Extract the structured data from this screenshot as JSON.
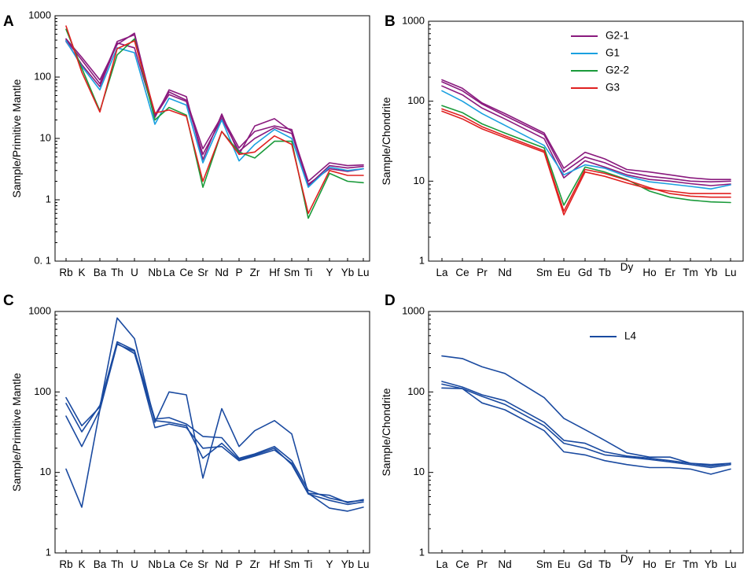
{
  "chart_data": [
    {
      "panel": "A",
      "type": "line",
      "title": "",
      "xlabel": "",
      "ylabel": "Sample/Primitive Mantle",
      "yscale": "log",
      "ylim": [
        0.1,
        1000
      ],
      "yticks": [
        {
          "value": 0.1,
          "label": "0. 1"
        },
        {
          "value": 1,
          "label": "1"
        },
        {
          "value": 10,
          "label": "10"
        },
        {
          "value": 100,
          "label": "100"
        },
        {
          "value": 1000,
          "label": "1000"
        }
      ],
      "categories": [
        "Rb",
        "K",
        "Ba",
        "Th",
        "U",
        "Nb",
        "La",
        "Ce",
        "Sr",
        "Nd",
        "P",
        "Zr",
        "Hf",
        "Sm",
        "Ti",
        "Y",
        "Yb",
        "Lu"
      ],
      "legend": [],
      "series": [
        {
          "name": "G2-1",
          "color": "#8a1a7e",
          "values": [
            420,
            210,
            90,
            340,
            520,
            22,
            62,
            48,
            4.5,
            25,
            5.5,
            16,
            21,
            13,
            2.0,
            4.0,
            3.6,
            3.7
          ]
        },
        {
          "name": "G2-1",
          "color": "#8a1a7e",
          "values": [
            400,
            190,
            78,
            380,
            490,
            24,
            57,
            42,
            6.8,
            23,
            7.0,
            13,
            16,
            14,
            1.7,
            3.6,
            3.3,
            3.5
          ]
        },
        {
          "name": "G2-1",
          "color": "#8a1a7e",
          "values": [
            380,
            160,
            70,
            360,
            300,
            23,
            52,
            40,
            5.5,
            21,
            6.2,
            10,
            15,
            12,
            1.8,
            3.2,
            2.9,
            3.2
          ]
        },
        {
          "name": "G1",
          "color": "#1aa0e0",
          "values": [
            390,
            150,
            62,
            300,
            250,
            17,
            45,
            35,
            4.0,
            20,
            4.3,
            8,
            14,
            10,
            1.6,
            3.4,
            3.0,
            3.2
          ]
        },
        {
          "name": "G2-2",
          "color": "#1a9a3a",
          "values": [
            600,
            140,
            28,
            230,
            420,
            20,
            32,
            24,
            1.6,
            13,
            6.0,
            4.8,
            9.0,
            9.0,
            0.5,
            2.7,
            2.0,
            1.9
          ]
        },
        {
          "name": "G3",
          "color": "#e02020",
          "values": [
            680,
            120,
            27,
            290,
            390,
            26,
            29,
            23,
            2.0,
            13,
            5.5,
            6.0,
            11.0,
            8.0,
            0.6,
            3.0,
            2.5,
            2.5
          ]
        }
      ]
    },
    {
      "panel": "B",
      "type": "line",
      "title": "",
      "xlabel": "",
      "ylabel": "Sample/Chondrite",
      "yscale": "log",
      "ylim": [
        1,
        1000
      ],
      "yticks": [
        {
          "value": 1,
          "label": "1"
        },
        {
          "value": 10,
          "label": "10"
        },
        {
          "value": 100,
          "label": "100"
        },
        {
          "value": 1000,
          "label": "1000"
        }
      ],
      "categories": [
        "La",
        "Ce",
        "Pr",
        "Nd",
        "Sm",
        "Eu",
        "Gd",
        "Tb",
        "Dy",
        "Ho",
        "Er",
        "Tm",
        "Yb",
        "Lu"
      ],
      "legend": [
        "G2-1",
        "G1",
        "G2-2",
        "G3"
      ],
      "legend_position": "top-right",
      "series": [
        {
          "name": "G2-1",
          "color": "#8a1a7e",
          "values": [
            185,
            145,
            95,
            70,
            40,
            14.5,
            23,
            19,
            14,
            13,
            12,
            11,
            10.5,
            10.5
          ]
        },
        {
          "name": "G2-1",
          "color": "#8a1a7e",
          "values": [
            175,
            135,
            92,
            66,
            38,
            13,
            20,
            17,
            13,
            11.5,
            10.8,
            10,
            9.8,
            10
          ]
        },
        {
          "name": "G2-1",
          "color": "#8a1a7e",
          "values": [
            155,
            120,
            82,
            60,
            34,
            11,
            18,
            15,
            12,
            10.5,
            10,
            9.3,
            8.8,
            9.2
          ]
        },
        {
          "name": "G1",
          "color": "#1aa0e0",
          "values": [
            135,
            100,
            70,
            50,
            28,
            12,
            16,
            14.5,
            11.5,
            9.8,
            9.2,
            8.6,
            8,
            9
          ]
        },
        {
          "name": "G2-2",
          "color": "#1a9a3a",
          "values": [
            88,
            72,
            52,
            40,
            26,
            5,
            15,
            13,
            10.5,
            7.5,
            6.3,
            5.8,
            5.5,
            5.4
          ]
        },
        {
          "name": "G3",
          "color": "#e02020",
          "values": [
            75,
            60,
            45,
            35,
            23,
            3.8,
            13,
            11.5,
            9.5,
            8,
            7.5,
            7,
            7,
            7
          ]
        },
        {
          "name": "G3",
          "color": "#e02020",
          "values": [
            80,
            65,
            48,
            37,
            24,
            4.2,
            14,
            12.5,
            10.3,
            8.3,
            7,
            6.5,
            6.3,
            6.3
          ]
        }
      ]
    },
    {
      "panel": "C",
      "type": "line",
      "title": "",
      "xlabel": "",
      "ylabel": "Sample/Primitive Mantle",
      "yscale": "log",
      "ylim": [
        1,
        1000
      ],
      "yticks": [
        {
          "value": 1,
          "label": "1"
        },
        {
          "value": 10,
          "label": "10"
        },
        {
          "value": 100,
          "label": "100"
        },
        {
          "value": 1000,
          "label": "1000"
        }
      ],
      "categories": [
        "Rb",
        "K",
        "Ba",
        "Th",
        "U",
        "Nb",
        "La",
        "Ce",
        "Sr",
        "Nd",
        "P",
        "Zr",
        "Hf",
        "Sm",
        "Ti",
        "Y",
        "Yb",
        "Lu"
      ],
      "legend": [],
      "series": [
        {
          "name": "L4",
          "color": "#1a4aa0",
          "values": [
            85,
            38,
            65,
            830,
            460,
            42,
            100,
            92,
            8.5,
            62,
            21,
            33,
            44,
            30,
            5.5,
            5.2,
            4.2,
            4.6
          ]
        },
        {
          "name": "L4",
          "color": "#1a4aa0",
          "values": [
            72,
            32,
            68,
            420,
            330,
            46,
            48,
            40,
            28,
            27,
            15,
            17,
            21,
            14,
            6.0,
            4.8,
            4.3,
            4.5
          ]
        },
        {
          "name": "L4",
          "color": "#1a4aa0",
          "values": [
            50,
            21,
            60,
            400,
            300,
            44,
            42,
            38,
            15,
            23,
            14.5,
            16.5,
            20,
            12.5,
            5.4,
            4.5,
            4.0,
            4.3
          ]
        },
        {
          "name": "L4",
          "color": "#1a4aa0",
          "values": [
            11,
            3.7,
            60,
            390,
            320,
            36,
            40,
            36,
            20,
            21,
            14,
            16,
            19,
            13,
            5.5,
            3.6,
            3.3,
            3.7
          ]
        }
      ]
    },
    {
      "panel": "D",
      "type": "line",
      "title": "",
      "xlabel": "",
      "ylabel": "Sample/Chondrite",
      "yscale": "log",
      "ylim": [
        1,
        1000
      ],
      "yticks": [
        {
          "value": 1,
          "label": "1"
        },
        {
          "value": 10,
          "label": "10"
        },
        {
          "value": 100,
          "label": "100"
        },
        {
          "value": 1000,
          "label": "1000"
        }
      ],
      "categories": [
        "La",
        "Ce",
        "Pr",
        "Nd",
        "Sm",
        "Eu",
        "Gd",
        "Tb",
        "Dy",
        "Ho",
        "Er",
        "Tm",
        "Yb",
        "Lu"
      ],
      "legend": [
        "L4"
      ],
      "legend_position": "top-center",
      "series": [
        {
          "name": "L4",
          "color": "#1a4aa0",
          "values": [
            280,
            260,
            205,
            170,
            85,
            47,
            34,
            25,
            17.5,
            15.5,
            15.5,
            13,
            12.5,
            13
          ]
        },
        {
          "name": "L4",
          "color": "#1a4aa0",
          "values": [
            135,
            115,
            92,
            78,
            42,
            25,
            23,
            18,
            16,
            15,
            14,
            13,
            12,
            13
          ]
        },
        {
          "name": "L4",
          "color": "#1a4aa0",
          "values": [
            125,
            110,
            88,
            70,
            38,
            23,
            20,
            16.5,
            15.5,
            14.5,
            13.5,
            12.5,
            11.5,
            12.5
          ]
        },
        {
          "name": "L4",
          "color": "#1a4aa0",
          "values": [
            112,
            110,
            73,
            60,
            33,
            18,
            16.5,
            14,
            12.5,
            11.5,
            11.5,
            11,
            9.5,
            11
          ]
        }
      ]
    }
  ]
}
